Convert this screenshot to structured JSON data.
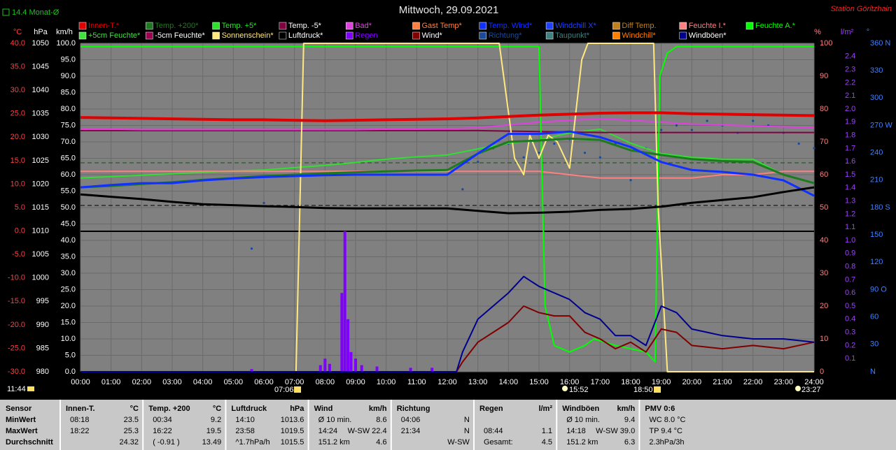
{
  "chart_data": {
    "type": "line",
    "title": "Mittwoch, 29.09.2021",
    "station": "Station Göritzhain",
    "month_avg_label": "14.4 Monat-Ø",
    "annotations": {
      "day_length": "11:44",
      "sunrise": "07:06",
      "moonrise": "15:52",
      "sunset": "18:50",
      "moonset": "23:27"
    },
    "ylabel": "°C",
    "y2label": "hPa",
    "y3label": "km/h",
    "y4label": "%",
    "y5label": "l/m²",
    "y6label": "°",
    "grid": true,
    "xlim": [
      0,
      24
    ],
    "xticks": [
      {
        "value": 0,
        "label": "00:00"
      },
      {
        "value": 1,
        "label": "01:00"
      },
      {
        "value": 2,
        "label": "02:00"
      },
      {
        "value": 3,
        "label": "03:00"
      },
      {
        "value": 4,
        "label": "04:00"
      },
      {
        "value": 5,
        "label": "05:00"
      },
      {
        "value": 6,
        "label": "06:00"
      },
      {
        "value": 7,
        "label": "07:00"
      },
      {
        "value": 8,
        "label": "08:00"
      },
      {
        "value": 9,
        "label": "09:00"
      },
      {
        "value": 10,
        "label": "10:00"
      },
      {
        "value": 11,
        "label": "11:00"
      },
      {
        "value": 12,
        "label": "12:00"
      },
      {
        "value": 13,
        "label": "13:00"
      },
      {
        "value": 14,
        "label": "14:00"
      },
      {
        "value": 15,
        "label": "15:00"
      },
      {
        "value": 16,
        "label": "16:00"
      },
      {
        "value": 17,
        "label": "17:00"
      },
      {
        "value": 18,
        "label": "18:00"
      },
      {
        "value": 19,
        "label": "19:00"
      },
      {
        "value": 20,
        "label": "20:00"
      },
      {
        "value": 21,
        "label": "21:00"
      },
      {
        "value": 22,
        "label": "22:00"
      },
      {
        "value": 23,
        "label": "23:00"
      },
      {
        "value": 24,
        "label": "24:00"
      }
    ],
    "ylim": [
      -30,
      40
    ],
    "yticks": [
      {
        "value": 40,
        "label": "40.0"
      },
      {
        "value": 35,
        "label": "35.0"
      },
      {
        "value": 30,
        "label": "30.0"
      },
      {
        "value": 25,
        "label": "25.0"
      },
      {
        "value": 20,
        "label": "20.0"
      },
      {
        "value": 15,
        "label": "15.0"
      },
      {
        "value": 10,
        "label": "10.0"
      },
      {
        "value": 5,
        "label": "5.0"
      },
      {
        "value": 0,
        "label": "0.0"
      },
      {
        "value": -5,
        "label": "-5.0"
      },
      {
        "value": -10,
        "label": "-10.0"
      },
      {
        "value": -15,
        "label": "-15.0"
      },
      {
        "value": -20,
        "label": "-20.0"
      },
      {
        "value": -25,
        "label": "-25.0"
      },
      {
        "value": -30,
        "label": "-30.0"
      }
    ],
    "y2lim": [
      980,
      1050
    ],
    "y2ticks": [
      1050,
      1045,
      1040,
      1035,
      1030,
      1025,
      1020,
      1015,
      1010,
      1005,
      1000,
      995,
      990,
      985,
      980
    ],
    "y3lim": [
      0,
      100
    ],
    "y3ticks": [
      {
        "value": 100,
        "label": "100.0"
      },
      {
        "value": 95,
        "label": "95.0"
      },
      {
        "value": 90,
        "label": "90.0"
      },
      {
        "value": 85,
        "label": "85.0"
      },
      {
        "value": 80,
        "label": "80.0"
      },
      {
        "value": 75,
        "label": "75.0"
      },
      {
        "value": 70,
        "label": "70.0"
      },
      {
        "value": 65,
        "label": "65.0"
      },
      {
        "value": 60,
        "label": "60.0"
      },
      {
        "value": 55,
        "label": "55.0"
      },
      {
        "value": 50,
        "label": "50.0"
      },
      {
        "value": 45,
        "label": "45.0"
      },
      {
        "value": 40,
        "label": "40.0"
      },
      {
        "value": 35,
        "label": "35.0"
      },
      {
        "value": 30,
        "label": "30.0"
      },
      {
        "value": 25,
        "label": "25.0"
      },
      {
        "value": 20,
        "label": "20.0"
      },
      {
        "value": 15,
        "label": "15.0"
      },
      {
        "value": 10,
        "label": "10.0"
      },
      {
        "value": 5,
        "label": "5.0"
      },
      {
        "value": 0,
        "label": "0.0"
      }
    ],
    "y4lim": [
      0,
      100
    ],
    "y4ticks": [
      100,
      90,
      80,
      70,
      60,
      50,
      40,
      30,
      20,
      10,
      0
    ],
    "y5lim": [
      0,
      2.5
    ],
    "y5ticks": [
      2.4,
      2.3,
      2.2,
      2.1,
      {
        "value": 2,
        "label": "2.0"
      },
      1.9,
      1.8,
      1.7,
      1.6,
      1.5,
      1.4,
      1.3,
      1.2,
      1.1,
      {
        "value": 1,
        "label": "1.0"
      },
      0.9,
      0.8,
      0.7,
      0.6,
      0.5,
      0.4,
      0.3,
      0.2,
      0.1
    ],
    "y6lim": [
      0,
      360
    ],
    "y6ticks": [
      {
        "value": 360,
        "label": "360 N"
      },
      330,
      300,
      {
        "value": 270,
        "label": "270 W"
      },
      240,
      210,
      {
        "value": 180,
        "label": "180 S"
      },
      150,
      120,
      {
        "value": 90,
        "label": "90 O"
      },
      60,
      30,
      {
        "value": 0,
        "label": "N"
      }
    ],
    "x": [
      0,
      1,
      2,
      3,
      4,
      5,
      6,
      7,
      8,
      9,
      10,
      11,
      12,
      13,
      14,
      15,
      16,
      17,
      18,
      19,
      20,
      21,
      22,
      23,
      24
    ],
    "series": [
      {
        "name": "Innen-T.*",
        "color": "#e00000",
        "axis": "y",
        "values": [
          24.2,
          24.1,
          24.0,
          23.9,
          23.8,
          23.7,
          23.7,
          23.6,
          23.5,
          23.6,
          23.7,
          23.8,
          23.9,
          24.1,
          24.4,
          24.7,
          24.9,
          25.1,
          25.2,
          25.2,
          25.0,
          24.9,
          24.8,
          24.7,
          24.6
        ]
      },
      {
        "name": "Temp. +200*",
        "color": "#1e7a1e",
        "axis": "y",
        "values": [
          9.3,
          9.6,
          10.0,
          10.4,
          10.9,
          11.3,
          11.7,
          12.0,
          12.3,
          12.5,
          12.7,
          12.9,
          13.0,
          16.5,
          19.0,
          19.3,
          19.7,
          19.4,
          17.2,
          16.2,
          15.3,
          14.9,
          14.7,
          12.0,
          10.2
        ]
      },
      {
        "name": "Temp. +5*",
        "color": "#30e030",
        "axis": "y",
        "values": [
          11.3,
          11.6,
          11.9,
          12.2,
          12.5,
          12.8,
          13.0,
          13.5,
          14.0,
          14.6,
          15.3,
          15.8,
          16.2,
          17.5,
          18.7,
          19.4,
          20.9,
          21.7,
          18.7,
          16.5,
          15.7,
          15.3,
          15.3,
          12.0,
          10.2
        ]
      },
      {
        "name": "Temp. -5*",
        "color": "#800040",
        "axis": "y",
        "values": [
          21.4,
          21.4,
          21.4,
          21.4,
          21.4,
          21.4,
          21.4,
          21.4,
          21.4,
          21.4,
          21.4,
          21.4,
          21.4,
          21.4,
          21.3,
          21.2,
          21.1,
          21.0,
          21.0,
          21.0,
          21.0,
          21.0,
          21.0,
          21.0,
          21.0
        ]
      },
      {
        "name": "Bad*",
        "color": "#e040e0",
        "axis": "y",
        "values": [
          21.7,
          21.7,
          21.6,
          21.6,
          21.6,
          21.6,
          21.6,
          21.6,
          21.6,
          21.6,
          21.7,
          21.7,
          21.8,
          22.0,
          22.6,
          23.2,
          23.6,
          23.9,
          23.6,
          23.2,
          22.8,
          22.6,
          22.4,
          22.2,
          22.0
        ]
      },
      {
        "name": "Gast Temp*",
        "color": "#ff8040"
      },
      {
        "name": "Temp. Wind*",
        "color": "#1030ff",
        "axis": "y",
        "values": [
          9.3,
          9.8,
          10.2,
          10.2,
          10.8,
          11.2,
          11.5,
          11.7,
          11.9,
          12.0,
          12.0,
          12.0,
          12.0,
          16.5,
          20.7,
          20.7,
          21.2,
          20.0,
          17.9,
          14.7,
          13.0,
          12.6,
          12.0,
          10.8,
          7.5
        ]
      },
      {
        "name": "Windchill X*",
        "color": "#2040ff"
      },
      {
        "name": "Diff Temp.",
        "color": "#c08020"
      },
      {
        "name": "Feuchte I.*",
        "color": "#ff8080",
        "axis": "y4",
        "values": [
          61,
          61,
          61,
          61,
          61,
          61,
          61,
          61,
          61,
          61,
          61,
          61,
          61,
          61,
          61,
          61,
          60,
          59,
          59,
          59,
          59,
          60,
          60,
          61,
          61
        ]
      },
      {
        "name": "Feuchte A.*",
        "color": "#00ff00",
        "axis": "y4",
        "x": [
          0,
          15.0,
          15.2,
          15.5,
          16,
          16.5,
          16.8,
          17.5,
          18.5,
          18.8,
          18.95,
          19.2,
          19.5,
          24
        ],
        "values": [
          99,
          99,
          20,
          8,
          6,
          8,
          10,
          8,
          6,
          3,
          90,
          97,
          99,
          99
        ]
      },
      {
        "name": "+5cm Feuchte*",
        "color": "#40e040"
      },
      {
        "name": "-5cm Feuchte*",
        "color": "#a00050"
      },
      {
        "name": "Sonnenschein*",
        "color": "#ffe880",
        "axis": "y4",
        "x": [
          0,
          7.05,
          7.3,
          13.7,
          14.2,
          14.5,
          14.7,
          15.0,
          15.3,
          15.6,
          16.0,
          16.4,
          16.6,
          18.75,
          18.9,
          19.2,
          24
        ],
        "values": [
          0,
          0,
          100,
          100,
          65,
          60,
          72,
          65,
          72,
          70,
          62,
          95,
          100,
          100,
          50,
          0,
          0
        ]
      },
      {
        "name": "Luftdruck*",
        "color": "#000000",
        "axis": "y2",
        "values": [
          1017.8,
          1017.3,
          1016.8,
          1016.2,
          1015.7,
          1015.5,
          1015.3,
          1015.1,
          1014.9,
          1014.8,
          1014.8,
          1014.8,
          1014.8,
          1014.3,
          1013.8,
          1013.9,
          1014.1,
          1014.5,
          1014.7,
          1015.2,
          1016.0,
          1016.6,
          1017.2,
          1018.3,
          1019.3
        ]
      },
      {
        "name": "Regen",
        "color": "#8000ff",
        "axis": "y5",
        "type": "bar",
        "x": [
          5.6,
          7.85,
          8.0,
          8.15,
          8.55,
          8.65,
          8.75,
          8.85,
          9.0,
          9.2,
          9.7,
          10.8,
          11.5
        ],
        "values": [
          0.02,
          0.05,
          0.1,
          0.06,
          0.6,
          1.07,
          0.4,
          0.15,
          0.1,
          0.05,
          0.04,
          0.03,
          0.03
        ]
      },
      {
        "name": "Wind*",
        "color": "#800000",
        "axis": "y3",
        "x": [
          0,
          12.3,
          12.5,
          13,
          13.5,
          14,
          14.5,
          15,
          15.5,
          16,
          16.5,
          17,
          17.5,
          18,
          18.5,
          19,
          19.5,
          20,
          21,
          22,
          23,
          24
        ],
        "values": [
          0,
          0,
          3,
          9,
          12,
          15,
          20,
          18,
          17,
          17,
          12,
          10,
          7,
          9,
          6,
          13,
          12,
          8,
          7,
          8,
          7,
          9
        ]
      },
      {
        "name": "Richtung*",
        "color": "#1a4a9a",
        "axis": "y6",
        "type": "scatter",
        "x": [
          5.6,
          6,
          12.5,
          13,
          13.5,
          14,
          14.5,
          15,
          15.5,
          16,
          16.5,
          17,
          17.5,
          18,
          18.5,
          19,
          19.5,
          20,
          20.5,
          21,
          21.5,
          22,
          22.5,
          23,
          23.5,
          24
        ],
        "values": [
          135,
          185,
          200,
          230,
          245,
          250,
          235,
          240,
          250,
          255,
          240,
          235,
          250,
          210,
          245,
          265,
          270,
          265,
          275,
          270,
          262,
          275,
          270,
          262,
          250,
          245
        ]
      },
      {
        "name": "Taupunkt*",
        "color": "#408080"
      },
      {
        "name": "Windchill*",
        "color": "#ff8000"
      },
      {
        "name": "Windböen*",
        "color": "#000090",
        "axis": "y3",
        "x": [
          0,
          12.3,
          12.5,
          13,
          13.5,
          14,
          14.5,
          15,
          15.5,
          16,
          16.5,
          17,
          17.5,
          18,
          18.5,
          19,
          19.5,
          20,
          21,
          22,
          23,
          24
        ],
        "values": [
          0,
          0,
          6,
          16,
          20,
          24,
          29,
          26,
          24,
          22,
          18,
          16,
          11,
          11,
          8,
          20,
          18,
          13,
          11,
          10,
          10,
          9
        ]
      }
    ]
  },
  "stats": {
    "row_labels": [
      "Sensor",
      "MinWert",
      "MaxWert",
      "Durchschnitt"
    ],
    "columns": [
      {
        "title": "Innen-T.",
        "unit": "°C",
        "cells": [
          {
            "left": "08:18",
            "right": "23.5"
          },
          {
            "left": "18:22",
            "right": "25.3"
          },
          {
            "right": "24.32"
          }
        ]
      },
      {
        "title": "Temp. +200",
        "unit": "°C",
        "cells": [
          {
            "left": "00:34",
            "right": "9.2"
          },
          {
            "left": "16:22",
            "right": "19.5"
          },
          {
            "left": "( -0.91 )",
            "right": "13.49"
          }
        ]
      },
      {
        "title": "Luftdruck",
        "unit": "hPa",
        "cells": [
          {
            "left": "14:10",
            "right": "1013.6"
          },
          {
            "left": "23:58",
            "right": "1019.5"
          },
          {
            "left": "^1.7hPa/h",
            "right": "1015.5"
          }
        ]
      },
      {
        "title": "Wind",
        "unit": "km/h",
        "cells": [
          {
            "left": "Ø 10 min.",
            "right": "8.6"
          },
          {
            "left": "14:24",
            "right": "W-SW 22.4"
          },
          {
            "left": "151.2 km",
            "right": "4.6"
          }
        ]
      },
      {
        "title": "Richtung",
        "cells": [
          {
            "left": "04:06",
            "right": "N"
          },
          {
            "left": "21:34",
            "right": "N"
          },
          {
            "right": "W-SW"
          }
        ]
      },
      {
        "title": "Regen",
        "unit": "l/m²",
        "cells": [
          {},
          {
            "left": "08:44",
            "right": "1.1"
          },
          {
            "left": "Gesamt:",
            "right": "4.5"
          }
        ]
      },
      {
        "title": "Windböen",
        "unit": "km/h",
        "cells": [
          {
            "left": "Ø 10 min.",
            "right": "9.4"
          },
          {
            "left": "14:18",
            "right": "W-SW 39.0"
          },
          {
            "left": "151.2 km",
            "right": "6.3"
          }
        ]
      },
      {
        "title": "PMV 0:6",
        "cells": [
          {
            "left": "WC 8.0 °C"
          },
          {
            "left": "TP 9.4 °C"
          },
          {
            "left": "2.3hPa/3h"
          }
        ]
      }
    ]
  }
}
